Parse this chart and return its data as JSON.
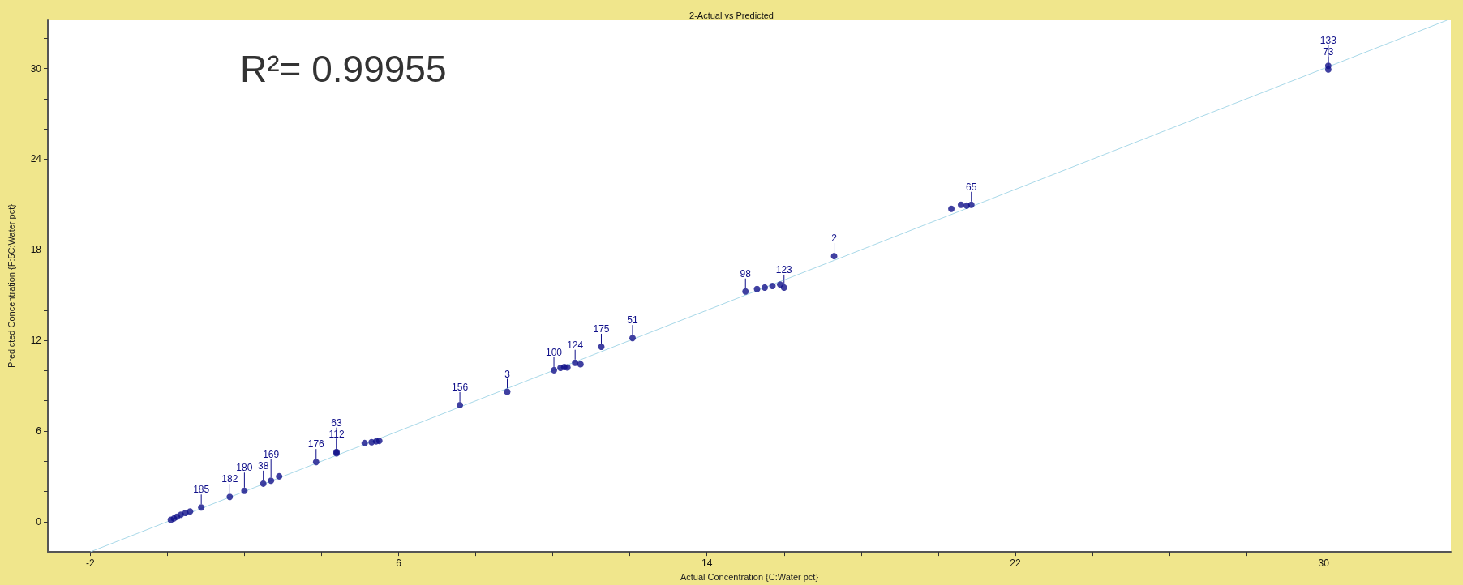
{
  "chart_data": {
    "type": "scatter",
    "title": "2-Actual vs Predicted",
    "xlabel": "Actual Concentration {C:Water pct}",
    "ylabel": "Predicted Concentration {F:5C:Water pct}",
    "annotations": [
      "R²= 0.99955",
      {
        "text": "185",
        "x": 0.88,
        "y": 0.94
      },
      {
        "text": "182",
        "x": 1.62,
        "y": 1.64
      },
      {
        "text": "180",
        "x": 2.0,
        "y": 2.04
      },
      {
        "text": "38",
        "x": 2.49,
        "y": 2.52
      },
      {
        "text": "169",
        "x": 2.69,
        "y": 2.71
      },
      {
        "text": "176",
        "x": 3.86,
        "y": 3.95
      },
      {
        "text": "112",
        "x": 4.39,
        "y": 4.62
      },
      {
        "text": "63",
        "x": 4.39,
        "y": 4.52
      },
      {
        "text": "156",
        "x": 7.59,
        "y": 7.72
      },
      {
        "text": "3",
        "x": 8.82,
        "y": 8.6
      },
      {
        "text": "100",
        "x": 10.03,
        "y": 10.03
      },
      {
        "text": "124",
        "x": 10.58,
        "y": 10.52
      },
      {
        "text": "175",
        "x": 11.26,
        "y": 11.58
      },
      {
        "text": "51",
        "x": 12.07,
        "y": 12.16
      },
      {
        "text": "98",
        "x": 15.0,
        "y": 15.24
      },
      {
        "text": "123",
        "x": 16.0,
        "y": 15.5
      },
      {
        "text": "2",
        "x": 17.3,
        "y": 17.58
      },
      {
        "text": "65",
        "x": 20.86,
        "y": 20.98
      },
      {
        "text": "73",
        "x": 30.12,
        "y": 29.94
      },
      {
        "text": "133",
        "x": 30.12,
        "y": 30.18
      }
    ],
    "xlim": [
      -3.1,
      33.3
    ],
    "ylim": [
      -2,
      33.2
    ],
    "xticks": [
      {
        "value": -2,
        "label": "-2"
      },
      {
        "value": 0,
        "label": null
      },
      {
        "value": 2,
        "label": null
      },
      {
        "value": 4,
        "label": null
      },
      {
        "value": 6,
        "label": "6"
      },
      {
        "value": 8,
        "label": null
      },
      {
        "value": 10,
        "label": null
      },
      {
        "value": 12,
        "label": null
      },
      {
        "value": 14,
        "label": "14"
      },
      {
        "value": 16,
        "label": null
      },
      {
        "value": 18,
        "label": null
      },
      {
        "value": 20,
        "label": null
      },
      {
        "value": 22,
        "label": "22"
      },
      {
        "value": 24,
        "label": null
      },
      {
        "value": 26,
        "label": null
      },
      {
        "value": 28,
        "label": null
      },
      {
        "value": 30,
        "label": "30"
      },
      {
        "value": 32,
        "label": null
      }
    ],
    "yticks": [
      {
        "value": 0,
        "label": "0"
      },
      {
        "value": 2,
        "label": null
      },
      {
        "value": 4,
        "label": null
      },
      {
        "value": 6,
        "label": "6"
      },
      {
        "value": 8,
        "label": null
      },
      {
        "value": 10,
        "label": null
      },
      {
        "value": 12,
        "label": "12"
      },
      {
        "value": 14,
        "label": null
      },
      {
        "value": 16,
        "label": null
      },
      {
        "value": 18,
        "label": "18"
      },
      {
        "value": 20,
        "label": null
      },
      {
        "value": 22,
        "label": null
      },
      {
        "value": 24,
        "label": "24"
      },
      {
        "value": 26,
        "label": null
      },
      {
        "value": 28,
        "label": null
      },
      {
        "value": 30,
        "label": "30"
      },
      {
        "value": 32,
        "label": null
      }
    ],
    "marker": "circle",
    "series": [
      {
        "type": "line",
        "color": "#a8d8e8",
        "marker": "none",
        "x": [
          -2,
          33.2
        ],
        "values": [
          -2,
          33.2
        ]
      },
      {
        "color": "#10108a",
        "x": [
          0.09,
          0.17,
          0.25,
          0.35,
          0.47,
          0.59,
          0.88,
          1.62,
          2.0,
          2.49,
          2.69,
          2.9,
          3.86,
          4.39,
          4.39,
          5.12,
          5.3,
          5.42,
          5.5,
          7.59,
          8.82,
          10.03,
          10.2,
          10.3,
          10.38,
          10.58,
          10.72,
          11.26,
          12.07,
          15.0,
          15.3,
          15.5,
          15.7,
          15.9,
          16.0,
          17.3,
          20.34,
          20.59,
          20.74,
          20.86,
          30.12,
          30.12
        ],
        "values": [
          0.12,
          0.21,
          0.33,
          0.46,
          0.58,
          0.67,
          0.94,
          1.64,
          2.04,
          2.52,
          2.71,
          3.0,
          3.95,
          4.62,
          4.52,
          5.2,
          5.26,
          5.32,
          5.35,
          7.72,
          8.6,
          10.03,
          10.18,
          10.24,
          10.21,
          10.52,
          10.43,
          11.58,
          12.16,
          15.24,
          15.4,
          15.5,
          15.6,
          15.7,
          15.5,
          17.58,
          20.71,
          20.98,
          20.92,
          20.98,
          29.94,
          30.18
        ]
      }
    ]
  }
}
